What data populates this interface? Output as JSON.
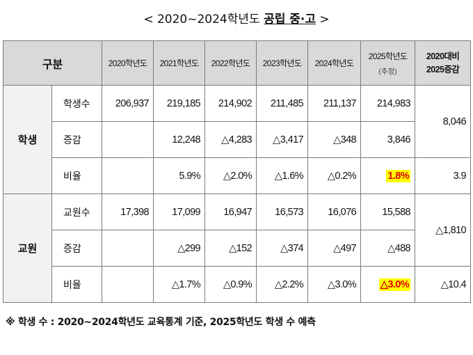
{
  "title": {
    "prefix": "< 2020~2024학년도 ",
    "highlight": "공립 중·고",
    "suffix": " >"
  },
  "header": {
    "gubun": "구분",
    "years": [
      "2020학년도",
      "2021학년도",
      "2022학년도",
      "2023학년도",
      "2024학년도",
      "2025학년도"
    ],
    "year_2025_note": "(추정)",
    "compare_line1": "2020대비",
    "compare_line2": "2025증감"
  },
  "students": {
    "group": "학생",
    "rows": [
      {
        "label": "학생수",
        "values": [
          "206,937",
          "219,185",
          "214,902",
          "211,485",
          "211,137",
          "214,983"
        ]
      },
      {
        "label": "증감",
        "values": [
          "",
          "12,248",
          "△4,283",
          "△3,417",
          "△348",
          "3,846"
        ]
      },
      {
        "label": "비율",
        "values": [
          "",
          "5.9%",
          "△2.0%",
          "△1.6%",
          "△0.2%",
          "1.8%"
        ]
      }
    ],
    "compare_count": "8,046",
    "compare_rate": "3.9"
  },
  "teachers": {
    "group": "교원",
    "rows": [
      {
        "label": "교원수",
        "values": [
          "17,398",
          "17,099",
          "16,947",
          "16,573",
          "16,076",
          "15,588"
        ]
      },
      {
        "label": "증감",
        "values": [
          "",
          "△299",
          "△152",
          "△374",
          "△497",
          "△488"
        ]
      },
      {
        "label": "비율",
        "values": [
          "",
          "△1.7%",
          "△0.9%",
          "△2.2%",
          "△3.0%",
          "△3.0%"
        ]
      }
    ],
    "compare_count": "△1,810",
    "compare_rate": "△10.4"
  },
  "highlight_colors": {
    "background": "#ffff00",
    "text": "#e00000"
  },
  "footnote": "※ 학생 수 : 2020~2024학년도 교육통계 기준, 2025학년도 학생 수 예측"
}
